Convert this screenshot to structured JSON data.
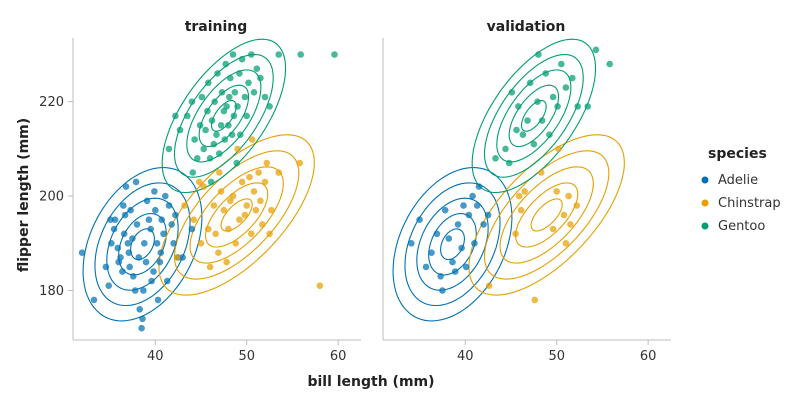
{
  "chart_data": {
    "type": "scatter",
    "xlabel": "bill length (mm)",
    "ylabel": "flipper length (mm)",
    "xlim": [
      31,
      62.5
    ],
    "ylim": [
      169.5,
      233.5
    ],
    "xticks": [
      40,
      50,
      60
    ],
    "yticks": [
      180,
      200,
      220
    ],
    "grid": false,
    "legend": {
      "title": "species",
      "position": "right",
      "entries": [
        {
          "name": "Adelie",
          "color": "#0072B2"
        },
        {
          "name": "Chinstrap",
          "color": "#E69F00"
        },
        {
          "name": "Gentoo",
          "color": "#009E73"
        }
      ]
    },
    "panels": [
      {
        "title": "training",
        "series": [
          {
            "name": "Adelie",
            "color": "#0072B2",
            "ellipse": {
              "cx": 38.6,
              "cy": 189.8,
              "sx": 2.6,
              "sy": 6.5,
              "rho": 0.35
            },
            "points": [
              [
                32,
                188
              ],
              [
                33.3,
                178
              ],
              [
                34.6,
                185
              ],
              [
                34.9,
                181
              ],
              [
                35.2,
                190
              ],
              [
                35.5,
                193
              ],
              [
                35.6,
                195
              ],
              [
                35.9,
                189
              ],
              [
                36,
                186
              ],
              [
                36.2,
                187
              ],
              [
                36.4,
                184
              ],
              [
                36.6,
                192
              ],
              [
                36.7,
                196
              ],
              [
                36.8,
                202
              ],
              [
                37,
                190
              ],
              [
                37.1,
                188
              ],
              [
                37.3,
                197
              ],
              [
                37.5,
                191
              ],
              [
                37.6,
                183
              ],
              [
                37.8,
                180
              ],
              [
                38,
                194
              ],
              [
                38.2,
                187
              ],
              [
                38.3,
                176
              ],
              [
                38.5,
                172
              ],
              [
                38.6,
                174
              ],
              [
                38.8,
                190
              ],
              [
                39,
                186
              ],
              [
                39.1,
                199
              ],
              [
                39.3,
                195
              ],
              [
                39.5,
                193
              ],
              [
                39.6,
                182
              ],
              [
                39.8,
                184
              ],
              [
                40,
                197
              ],
              [
                40.2,
                190
              ],
              [
                40.3,
                178
              ],
              [
                40.5,
                186
              ],
              [
                40.7,
                195
              ],
              [
                40.9,
                192
              ],
              [
                41.1,
                200
              ],
              [
                41.3,
                182
              ],
              [
                41.5,
                198
              ],
              [
                41.8,
                194
              ],
              [
                42,
                190
              ],
              [
                42.2,
                196
              ],
              [
                42.5,
                187
              ],
              [
                43,
                187
              ],
              [
                44,
                193
              ],
              [
                35.1,
                195
              ],
              [
                36.5,
                198
              ],
              [
                37.9,
                203
              ],
              [
                39.9,
                201
              ],
              [
                38.7,
                180
              ],
              [
                37.2,
                185
              ],
              [
                40.6,
                188
              ]
            ]
          },
          {
            "name": "Chinstrap",
            "color": "#E69F00",
            "ellipse": {
              "cx": 48.9,
              "cy": 196,
              "sx": 3.4,
              "sy": 6.8,
              "rho": 0.65
            },
            "points": [
              [
                42.4,
                187
              ],
              [
                43.2,
                198
              ],
              [
                44.2,
                195
              ],
              [
                45,
                190
              ],
              [
                45.3,
                202
              ],
              [
                45.8,
                193
              ],
              [
                46,
                185
              ],
              [
                46.4,
                198
              ],
              [
                46.6,
                192
              ],
              [
                47,
                205
              ],
              [
                47.2,
                201
              ],
              [
                47.5,
                197
              ],
              [
                48,
                193
              ],
              [
                48.2,
                199
              ],
              [
                48.5,
                200
              ],
              [
                48.8,
                190
              ],
              [
                49.2,
                195
              ],
              [
                49.5,
                203
              ],
              [
                49.8,
                196
              ],
              [
                50,
                198
              ],
              [
                50.3,
                204
              ],
              [
                50.5,
                192
              ],
              [
                50.8,
                201
              ],
              [
                51,
                197
              ],
              [
                51.3,
                205
              ],
              [
                51.5,
                199
              ],
              [
                51.7,
                194
              ],
              [
                52,
                203
              ],
              [
                52.2,
                207
              ],
              [
                52.7,
                197
              ],
              [
                53.5,
                205
              ],
              [
                55.8,
                207
              ],
              [
                58,
                181
              ],
              [
                46.9,
                188
              ],
              [
                49,
                210
              ],
              [
                50.6,
                212
              ],
              [
                52.5,
                192
              ],
              [
                47.8,
                186
              ],
              [
                44.8,
                203
              ]
            ]
          },
          {
            "name": "Gentoo",
            "color": "#009E73",
            "ellipse": {
              "cx": 47.5,
              "cy": 217,
              "sx": 2.7,
              "sy": 6.5,
              "rho": 0.62
            },
            "points": [
              [
                42.7,
                214
              ],
              [
                43.5,
                217
              ],
              [
                44,
                220
              ],
              [
                44.3,
                212
              ],
              [
                44.6,
                208
              ],
              [
                44.9,
                215
              ],
              [
                45.1,
                221
              ],
              [
                45.3,
                210
              ],
              [
                45.5,
                214
              ],
              [
                45.7,
                218
              ],
              [
                45.8,
                224
              ],
              [
                46,
                208
              ],
              [
                46.2,
                216
              ],
              [
                46.4,
                211
              ],
              [
                46.5,
                220
              ],
              [
                46.7,
                213
              ],
              [
                46.8,
                226
              ],
              [
                47,
                209
              ],
              [
                47.2,
                215
              ],
              [
                47.3,
                222
              ],
              [
                47.5,
                218
              ],
              [
                47.6,
                212
              ],
              [
                47.7,
                228
              ],
              [
                47.8,
                219
              ],
              [
                48,
                215
              ],
              [
                48.1,
                221
              ],
              [
                48.2,
                225
              ],
              [
                48.4,
                213
              ],
              [
                48.5,
                230
              ],
              [
                48.6,
                217
              ],
              [
                48.7,
                222
              ],
              [
                49,
                219
              ],
              [
                49.2,
                226
              ],
              [
                49.3,
                213
              ],
              [
                49.5,
                229
              ],
              [
                49.8,
                221
              ],
              [
                50,
                217
              ],
              [
                50.2,
                224
              ],
              [
                50.5,
                230
              ],
              [
                50.8,
                222
              ],
              [
                51.1,
                227
              ],
              [
                51.5,
                225
              ],
              [
                52,
                221
              ],
              [
                52.5,
                219
              ],
              [
                53.5,
                230
              ],
              [
                55.9,
                230
              ],
              [
                59.6,
                230
              ],
              [
                41.5,
                210
              ],
              [
                42.2,
                217
              ],
              [
                48.9,
                207
              ],
              [
                46.1,
                203
              ],
              [
                44.1,
                205
              ]
            ]
          }
        ]
      },
      {
        "title": "validation",
        "series": [
          {
            "name": "Adelie",
            "color": "#0072B2",
            "ellipse": {
              "cx": 38.6,
              "cy": 189.8,
              "sx": 2.6,
              "sy": 6.5,
              "rho": 0.35
            },
            "points": [
              [
                34.1,
                190
              ],
              [
                35,
                195
              ],
              [
                35.7,
                185
              ],
              [
                36.3,
                188
              ],
              [
                36.9,
                192
              ],
              [
                37.3,
                183
              ],
              [
                37.8,
                197
              ],
              [
                38.2,
                191
              ],
              [
                38.6,
                186
              ],
              [
                39.2,
                194
              ],
              [
                39.6,
                189
              ],
              [
                40.1,
                185
              ],
              [
                40.4,
                196
              ],
              [
                41,
                190
              ],
              [
                41.3,
                198
              ],
              [
                41.5,
                202
              ],
              [
                40.8,
                200
              ],
              [
                39.8,
                198
              ],
              [
                38.9,
                184
              ],
              [
                37.5,
                180
              ],
              [
                42,
                194
              ],
              [
                42.5,
                196
              ]
            ]
          },
          {
            "name": "Chinstrap",
            "color": "#E69F00",
            "ellipse": {
              "cx": 48.9,
              "cy": 196,
              "sx": 3.4,
              "sy": 6.8,
              "rho": 0.65
            },
            "points": [
              [
                42.6,
                181
              ],
              [
                45.5,
                192
              ],
              [
                46.1,
                197
              ],
              [
                46.5,
                201
              ],
              [
                47.6,
                178
              ],
              [
                48.3,
                205
              ],
              [
                49.6,
                193
              ],
              [
                50,
                201
              ],
              [
                50.8,
                196
              ],
              [
                51,
                190
              ],
              [
                51.5,
                194
              ],
              [
                51.3,
                200
              ],
              [
                52.2,
                198
              ],
              [
                50.2,
                210
              ],
              [
                45.9,
                200
              ]
            ]
          },
          {
            "name": "Gentoo",
            "color": "#009E73",
            "ellipse": {
              "cx": 47.5,
              "cy": 217,
              "sx": 2.7,
              "sy": 6.5,
              "rho": 0.62
            },
            "points": [
              [
                43.3,
                208
              ],
              [
                44.4,
                210
              ],
              [
                45.1,
                222
              ],
              [
                45.6,
                214
              ],
              [
                45.8,
                219
              ],
              [
                46.3,
                213
              ],
              [
                46.8,
                216
              ],
              [
                47.1,
                224
              ],
              [
                47.5,
                211
              ],
              [
                47.9,
                220
              ],
              [
                48.4,
                216
              ],
              [
                48.8,
                226
              ],
              [
                49.2,
                213
              ],
              [
                49.6,
                221
              ],
              [
                50.1,
                219
              ],
              [
                50.5,
                228
              ],
              [
                51,
                223
              ],
              [
                51.7,
                225
              ],
              [
                52.3,
                219
              ],
              [
                53.4,
                219
              ],
              [
                54.3,
                231
              ],
              [
                55.8,
                228
              ],
              [
                48,
                230
              ],
              [
                44.8,
                207
              ]
            ]
          }
        ]
      }
    ]
  }
}
